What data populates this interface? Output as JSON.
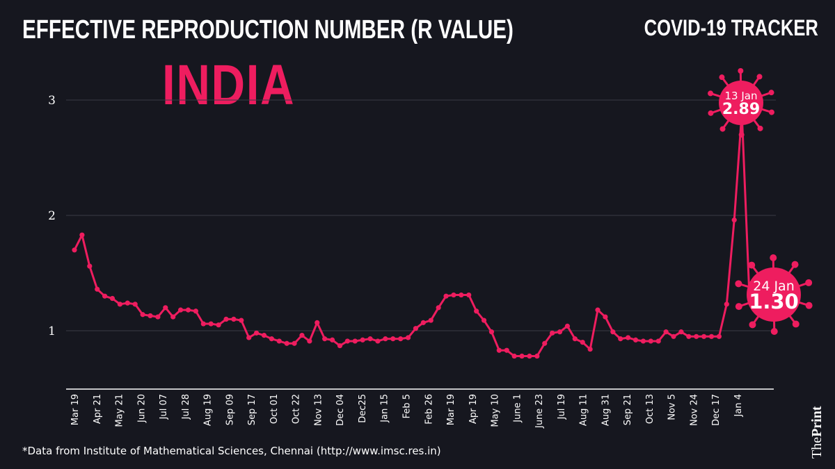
{
  "header": {
    "title": "EFFECTIVE REPRODUCTION NUMBER (R VALUE)",
    "tracker": "COVID-19 TRACKER",
    "country": "INDIA"
  },
  "footer": {
    "source": "*Data from Institute of Mathematical Sciences, Chennai (http://www.imsc.res.in)",
    "logo_the": "The",
    "logo_print": "Print"
  },
  "colors": {
    "background": "#16171f",
    "line": "#ee1d5f",
    "text": "#ffffff"
  },
  "chart_data": {
    "type": "line",
    "title": "EFFECTIVE REPRODUCTION NUMBER (R VALUE)",
    "xlabel": "",
    "ylabel": "",
    "ylim": [
      0.5,
      3.2
    ],
    "yticks": [
      1,
      2,
      3
    ],
    "grid": true,
    "xtick_labels": [
      "Mar 19",
      "Apr 21",
      "May 21",
      "Jun 20",
      "Jul 07",
      "Jul 28",
      "Aug 19",
      "Sep 09",
      "Sep 17",
      "Oct 01",
      "Oct 22",
      "Nov 13",
      "Dec 04",
      "Dec25",
      "Jan 15",
      "Feb 5",
      "Feb 26",
      "Mar 19",
      "Apr 19",
      "May 10",
      "June 1",
      "June 23",
      "Jul 19",
      "Aug 11",
      "Aug 31",
      "Sep 21",
      "Oct 13",
      "Nov 5",
      "Nov 24",
      "Dec 17",
      "Jan 4"
    ],
    "values": [
      1.7,
      1.83,
      1.56,
      1.36,
      1.3,
      1.28,
      1.23,
      1.24,
      1.23,
      1.14,
      1.13,
      1.12,
      1.2,
      1.12,
      1.18,
      1.18,
      1.17,
      1.06,
      1.06,
      1.05,
      1.1,
      1.1,
      1.09,
      0.94,
      0.98,
      0.96,
      0.93,
      0.91,
      0.89,
      0.89,
      0.96,
      0.91,
      1.07,
      0.93,
      0.92,
      0.87,
      0.91,
      0.91,
      0.92,
      0.93,
      0.91,
      0.93,
      0.93,
      0.93,
      0.94,
      1.02,
      1.07,
      1.09,
      1.2,
      1.3,
      1.31,
      1.31,
      1.31,
      1.17,
      1.09,
      0.99,
      0.83,
      0.83,
      0.78,
      0.78,
      0.78,
      0.78,
      0.89,
      0.98,
      0.99,
      1.04,
      0.93,
      0.9,
      0.84,
      1.18,
      1.12,
      0.99,
      0.93,
      0.94,
      0.92,
      0.91,
      0.91,
      0.91,
      0.99,
      0.95,
      0.99,
      0.95,
      0.95,
      0.95,
      0.95,
      0.95,
      1.23,
      1.96,
      2.89,
      1.3
    ],
    "annotations": [
      {
        "label": "13 Jan",
        "value": "2.89"
      },
      {
        "label": "24 Jan",
        "value": "1.30"
      }
    ]
  }
}
